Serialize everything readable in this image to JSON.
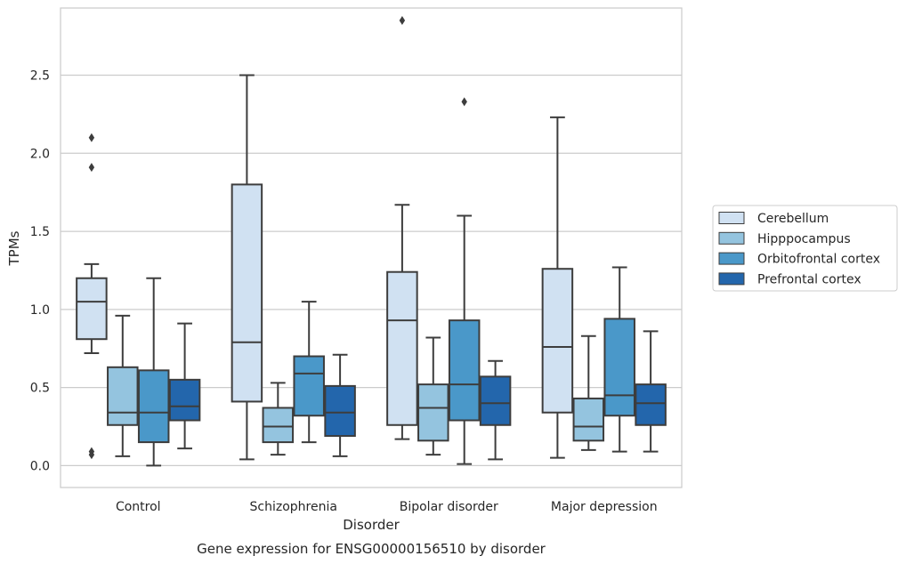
{
  "chart_data": {
    "type": "box",
    "title": "Gene expression for ENSG00000156510 by disorder",
    "xlabel": "Disorder",
    "ylabel": "TPMs",
    "ylim": [
      -0.14,
      2.93
    ],
    "yticks": [
      0.0,
      0.5,
      1.0,
      1.5,
      2.0,
      2.5
    ],
    "ytick_labels": [
      "0.0",
      "0.5",
      "1.0",
      "1.5",
      "2.0",
      "2.5"
    ],
    "grid": true,
    "legend_position": "right",
    "categories": [
      "Control",
      "Schizophrenia",
      "Bipolar disorder",
      "Major depression"
    ],
    "series": [
      {
        "name": "Cerebellum",
        "color": "#d0e1f2",
        "boxes": [
          {
            "whislo": 0.72,
            "q1": 0.81,
            "med": 1.05,
            "q3": 1.2,
            "whishi": 1.29,
            "fliers": [
              2.1,
              1.91,
              0.09,
              0.07
            ]
          },
          {
            "whislo": 0.04,
            "q1": 0.41,
            "med": 0.79,
            "q3": 1.8,
            "whishi": 2.5,
            "fliers": []
          },
          {
            "whislo": 0.17,
            "q1": 0.26,
            "med": 0.93,
            "q3": 1.24,
            "whishi": 1.67,
            "fliers": [
              2.85
            ]
          },
          {
            "whislo": 0.05,
            "q1": 0.34,
            "med": 0.76,
            "q3": 1.26,
            "whishi": 2.23,
            "fliers": []
          }
        ]
      },
      {
        "name": "Hipppocampus",
        "color": "#94c4df",
        "boxes": [
          {
            "whislo": 0.06,
            "q1": 0.26,
            "med": 0.34,
            "q3": 0.63,
            "whishi": 0.96,
            "fliers": []
          },
          {
            "whislo": 0.07,
            "q1": 0.15,
            "med": 0.25,
            "q3": 0.37,
            "whishi": 0.53,
            "fliers": []
          },
          {
            "whislo": 0.07,
            "q1": 0.16,
            "med": 0.37,
            "q3": 0.52,
            "whishi": 0.82,
            "fliers": []
          },
          {
            "whislo": 0.1,
            "q1": 0.16,
            "med": 0.25,
            "q3": 0.43,
            "whishi": 0.83,
            "fliers": []
          }
        ]
      },
      {
        "name": "Orbitofrontal cortex",
        "color": "#4a98c9",
        "boxes": [
          {
            "whislo": 0.0,
            "q1": 0.15,
            "med": 0.34,
            "q3": 0.61,
            "whishi": 1.2,
            "fliers": []
          },
          {
            "whislo": 0.15,
            "q1": 0.32,
            "med": 0.59,
            "q3": 0.7,
            "whishi": 1.05,
            "fliers": []
          },
          {
            "whislo": 0.01,
            "q1": 0.29,
            "med": 0.52,
            "q3": 0.93,
            "whishi": 1.6,
            "fliers": [
              2.33
            ]
          },
          {
            "whislo": 0.09,
            "q1": 0.32,
            "med": 0.45,
            "q3": 0.94,
            "whishi": 1.27,
            "fliers": []
          }
        ]
      },
      {
        "name": "Prefrontal cortex",
        "color": "#2366ac",
        "boxes": [
          {
            "whislo": 0.11,
            "q1": 0.29,
            "med": 0.38,
            "q3": 0.55,
            "whishi": 0.91,
            "fliers": []
          },
          {
            "whislo": 0.06,
            "q1": 0.19,
            "med": 0.34,
            "q3": 0.51,
            "whishi": 0.71,
            "fliers": []
          },
          {
            "whislo": 0.04,
            "q1": 0.26,
            "med": 0.4,
            "q3": 0.57,
            "whishi": 0.67,
            "fliers": []
          },
          {
            "whislo": 0.09,
            "q1": 0.26,
            "med": 0.4,
            "q3": 0.52,
            "whishi": 0.86,
            "fliers": []
          }
        ]
      }
    ]
  }
}
